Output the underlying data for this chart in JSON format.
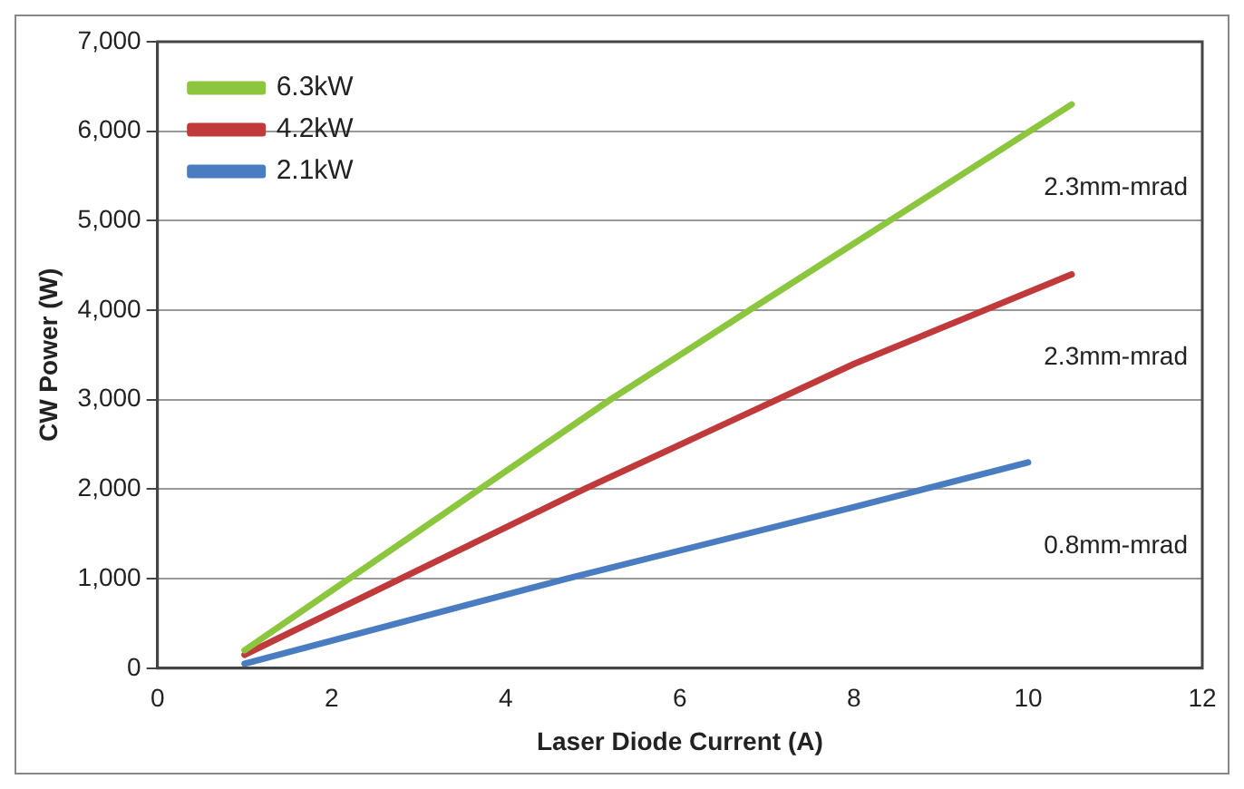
{
  "chart_data": {
    "type": "line",
    "xlabel": "Laser Diode Current (A)",
    "ylabel": "CW Power (W)",
    "xlim": [
      0,
      12
    ],
    "xticks": [
      0,
      2,
      4,
      6,
      8,
      10,
      12
    ],
    "ylim": [
      0,
      7000
    ],
    "yticks": [
      {
        "value": 0,
        "label": "0"
      },
      {
        "value": 1000,
        "label": "1,000"
      },
      {
        "value": 2000,
        "label": "2,000"
      },
      {
        "value": 3000,
        "label": "3,000"
      },
      {
        "value": 4000,
        "label": "4,000"
      },
      {
        "value": 5000,
        "label": "5,000"
      },
      {
        "value": 6000,
        "label": "6,000"
      },
      {
        "value": 7000,
        "label": "7,000"
      }
    ],
    "series": [
      {
        "name": "6.3kW",
        "color": "#8cc63f",
        "x": [
          1,
          3.7,
          5.2,
          6.8,
          10.5
        ],
        "values": [
          200,
          2000,
          3000,
          4000,
          6300
        ]
      },
      {
        "name": "4.2kW",
        "color": "#c0393b",
        "x": [
          1,
          4.9,
          8,
          10.5
        ],
        "values": [
          150,
          2000,
          3400,
          4400
        ]
      },
      {
        "name": "2.1kW",
        "color": "#4a7cc2",
        "x": [
          1,
          4.7,
          8,
          10
        ],
        "values": [
          50,
          1000,
          1800,
          2300
        ]
      }
    ],
    "annotations": [
      "2.3mm-mrad",
      "2.3mm-mrad",
      "0.8mm-mrad"
    ],
    "grid": "y",
    "legend": "top left",
    "marker": "none",
    "line_style": "solid"
  }
}
